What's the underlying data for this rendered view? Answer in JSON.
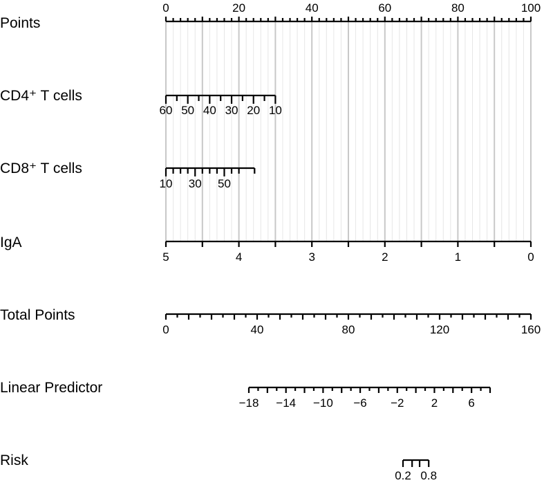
{
  "chart_data": {
    "type": "nomogram",
    "title": "",
    "grid": true,
    "scales": [
      {
        "id": "points",
        "label": "Points",
        "range": [
          0,
          100
        ],
        "major_ticks": [
          0,
          10,
          20,
          30,
          40,
          50,
          60,
          70,
          80,
          90,
          100
        ],
        "minor_ticks": [
          2,
          4,
          6,
          8,
          12,
          14,
          16,
          18,
          22,
          24,
          26,
          28,
          32,
          34,
          36,
          38,
          42,
          44,
          46,
          48,
          52,
          54,
          56,
          58,
          62,
          64,
          66,
          68,
          72,
          74,
          76,
          78,
          82,
          84,
          86,
          88,
          92,
          94,
          96,
          98
        ],
        "labels": [
          {
            "text": "0",
            "points": 0
          },
          {
            "text": "20",
            "points": 20
          },
          {
            "text": "40",
            "points": 40
          },
          {
            "text": "60",
            "points": 60
          },
          {
            "text": "80",
            "points": 80
          },
          {
            "text": "100",
            "points": 100
          }
        ]
      },
      {
        "id": "cd4",
        "label": "CD4⁺ T cells",
        "ticks": [
          {
            "value": 60,
            "points": 0
          },
          {
            "value": 55,
            "points": 3
          },
          {
            "value": 50,
            "points": 6
          },
          {
            "value": 45,
            "points": 9
          },
          {
            "value": 40,
            "points": 12
          },
          {
            "value": 35,
            "points": 15
          },
          {
            "value": 30,
            "points": 18
          },
          {
            "value": 25,
            "points": 21
          },
          {
            "value": 20,
            "points": 24
          },
          {
            "value": 15,
            "points": 27
          },
          {
            "value": 10,
            "points": 30
          }
        ],
        "labels": [
          {
            "text": "60",
            "points": 0
          },
          {
            "text": "50",
            "points": 6
          },
          {
            "text": "40",
            "points": 12
          },
          {
            "text": "30",
            "points": 18
          },
          {
            "text": "20",
            "points": 24
          },
          {
            "text": "10",
            "points": 30
          }
        ]
      },
      {
        "id": "cd8",
        "label": "CD8⁺ T cells",
        "ticks": [
          {
            "value": 10,
            "points": 0
          },
          {
            "value": 15,
            "points": 2
          },
          {
            "value": 20,
            "points": 4
          },
          {
            "value": 25,
            "points": 6
          },
          {
            "value": 30,
            "points": 8
          },
          {
            "value": 35,
            "points": 10
          },
          {
            "value": 40,
            "points": 12
          },
          {
            "value": 45,
            "points": 14
          },
          {
            "value": 50,
            "points": 16
          },
          {
            "value": 55,
            "points": 18
          },
          {
            "value": 60,
            "points": 20
          },
          {
            "value": 65,
            "points": 24.3
          }
        ],
        "labels": [
          {
            "text": "10",
            "points": 0
          },
          {
            "text": "30",
            "points": 8
          },
          {
            "text": "50",
            "points": 16
          }
        ]
      },
      {
        "id": "iga",
        "label": "IgA",
        "ticks": [
          {
            "value": 5,
            "points": 0
          },
          {
            "value": 4.5,
            "points": 10
          },
          {
            "value": 4,
            "points": 20
          },
          {
            "value": 3.5,
            "points": 30
          },
          {
            "value": 3,
            "points": 40
          },
          {
            "value": 2.5,
            "points": 50
          },
          {
            "value": 2,
            "points": 60
          },
          {
            "value": 1.5,
            "points": 70
          },
          {
            "value": 1,
            "points": 80
          },
          {
            "value": 0.5,
            "points": 90
          },
          {
            "value": 0,
            "points": 100
          }
        ],
        "labels": [
          {
            "text": "5",
            "points": 0
          },
          {
            "text": "4",
            "points": 20
          },
          {
            "text": "3",
            "points": 40
          },
          {
            "text": "2",
            "points": 60
          },
          {
            "text": "1",
            "points": 80
          },
          {
            "text": "0",
            "points": 100
          }
        ]
      },
      {
        "id": "total",
        "label": "Total Points",
        "range": [
          0,
          160
        ],
        "major_ticks": [
          0,
          10,
          20,
          30,
          40,
          50,
          60,
          70,
          80,
          90,
          100,
          110,
          120,
          130,
          140,
          150,
          160
        ],
        "minor_ticks": [
          5,
          15,
          25,
          35,
          45,
          55,
          65,
          75,
          85,
          95,
          105,
          115,
          125,
          135,
          145,
          155
        ],
        "labels": [
          {
            "text": "0",
            "value": 0
          },
          {
            "text": "40",
            "value": 40
          },
          {
            "text": "80",
            "value": 80
          },
          {
            "text": "120",
            "value": 120
          },
          {
            "text": "160",
            "value": 160
          }
        ]
      },
      {
        "id": "lp",
        "label": "Linear Predictor",
        "range": [
          -18,
          8
        ],
        "major_ticks": [
          -18,
          -16,
          -14,
          -12,
          -10,
          -8,
          -6,
          -4,
          -2,
          0,
          2,
          4,
          6,
          8
        ],
        "minor_ticks": [
          -17,
          -15,
          -13,
          -11,
          -9,
          -7,
          -5,
          -3,
          -1,
          1,
          3,
          5,
          7
        ],
        "labels": [
          {
            "text": "−18",
            "value": -18
          },
          {
            "text": "−14",
            "value": -14
          },
          {
            "text": "−10",
            "value": -10
          },
          {
            "text": "−6",
            "value": -6
          },
          {
            "text": "−2",
            "value": -2
          },
          {
            "text": "2",
            "value": 2
          },
          {
            "text": "6",
            "value": 6
          }
        ]
      },
      {
        "id": "risk",
        "label": "Risk",
        "ticks": [
          {
            "value": 0.2,
            "lp": -1.386
          },
          {
            "value": 0.4,
            "lp": -0.405
          },
          {
            "value": 0.6,
            "lp": 0.405
          },
          {
            "value": 0.8,
            "lp": 1.386
          }
        ],
        "labels": [
          {
            "text": "0.2",
            "value": 0.2
          },
          {
            "text": "0.8",
            "value": 0.8
          }
        ]
      }
    ]
  }
}
